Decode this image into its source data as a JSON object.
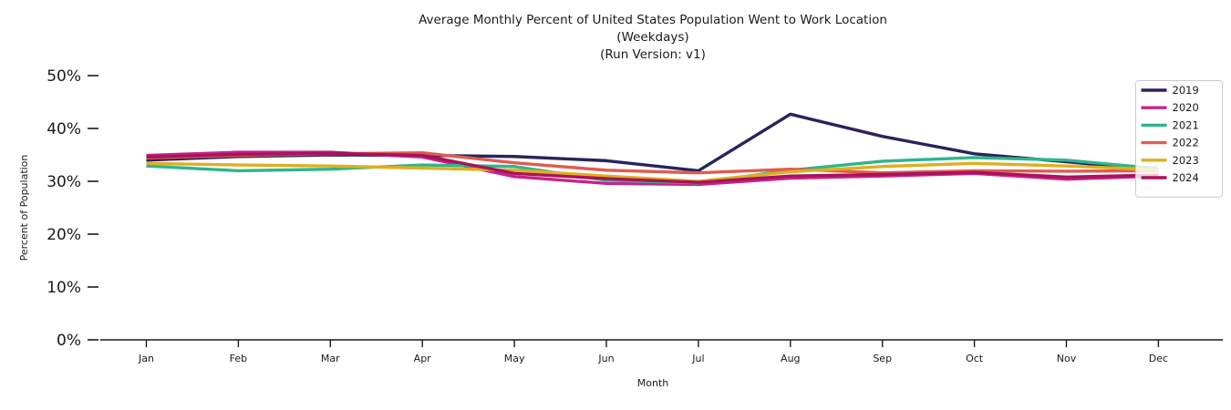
{
  "title": {
    "line1": "Average Monthly Percent of United States Population Went to Work Location",
    "line2": "(Weekdays)",
    "line3": "(Run Version: v1)"
  },
  "axes": {
    "x_label": "Month",
    "y_label": "Percent of Population",
    "x_ticks": [
      "Jan",
      "Feb",
      "Mar",
      "Apr",
      "May",
      "Jun",
      "Jul",
      "Aug",
      "Sep",
      "Oct",
      "Nov",
      "Dec"
    ],
    "y_ticks": [
      "0%",
      "10%",
      "20%",
      "30%",
      "40%",
      "50%"
    ]
  },
  "legend": {
    "entries": [
      "2019",
      "2020",
      "2021",
      "2022",
      "2023",
      "2024"
    ]
  },
  "chart_data": {
    "type": "line",
    "title": "Average Monthly Percent of United States Population Went to Work Location (Weekdays) (Run Version: v1)",
    "xlabel": "Month",
    "ylabel": "Percent of Population",
    "categories": [
      "Jan",
      "Feb",
      "Mar",
      "Apr",
      "May",
      "Jun",
      "Jul",
      "Aug",
      "Sep",
      "Oct",
      "Nov",
      "Dec"
    ],
    "ylim": [
      0,
      52
    ],
    "yticks": [
      0,
      10,
      20,
      30,
      40,
      50
    ],
    "grid": false,
    "legend_position": "upper right",
    "background": "#ffffff",
    "series": [
      {
        "name": "2019",
        "color": "#27245d",
        "values": [
          34.0,
          34.7,
          35.0,
          34.9,
          34.7,
          33.9,
          32.0,
          42.7,
          38.5,
          35.2,
          33.7,
          32.1
        ]
      },
      {
        "name": "2020",
        "color": "#c9218c",
        "values": [
          34.9,
          35.5,
          35.5,
          34.6,
          30.9,
          29.6,
          29.4,
          30.6,
          31.0,
          31.5,
          30.4,
          31.0
        ]
      },
      {
        "name": "2021",
        "color": "#2eb58d",
        "values": [
          32.9,
          32.0,
          32.3,
          33.1,
          32.8,
          30.2,
          29.7,
          32.1,
          33.8,
          34.5,
          34.0,
          32.4
        ]
      },
      {
        "name": "2022",
        "color": "#e05b51",
        "values": [
          34.4,
          34.9,
          35.2,
          35.4,
          33.5,
          32.1,
          31.6,
          32.3,
          31.6,
          32.0,
          31.9,
          32.0
        ]
      },
      {
        "name": "2023",
        "color": "#dfaf1f",
        "values": [
          33.4,
          33.1,
          32.9,
          32.5,
          32.1,
          31.0,
          30.0,
          31.8,
          32.8,
          33.4,
          32.9,
          32.2
        ]
      },
      {
        "name": "2024",
        "color": "#a8135a",
        "values": [
          34.6,
          35.1,
          35.3,
          34.9,
          31.5,
          30.5,
          29.8,
          31.0,
          31.3,
          31.7,
          30.8,
          31.2
        ]
      }
    ]
  }
}
